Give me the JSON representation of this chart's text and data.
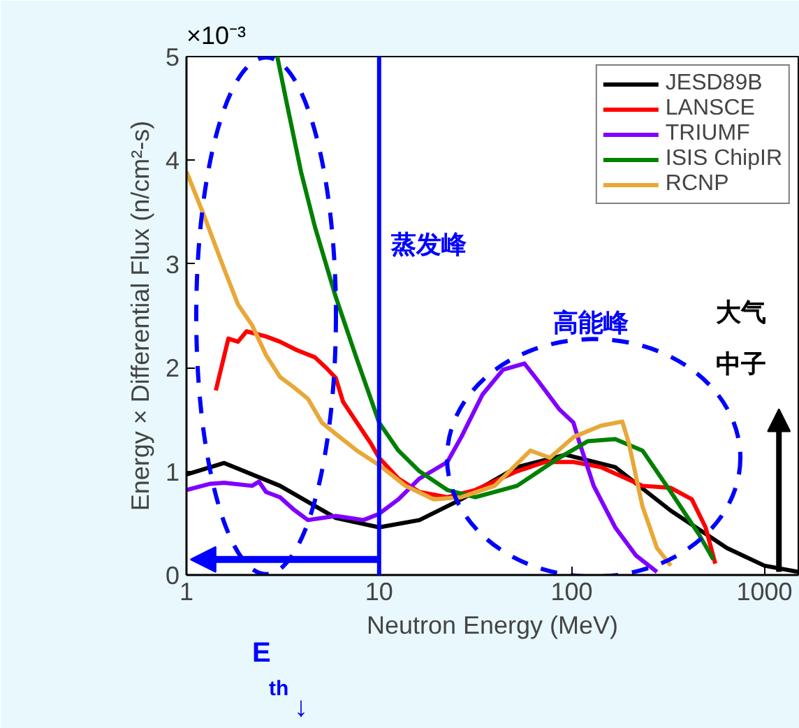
{
  "chart_data": {
    "type": "line",
    "xlabel": "Neutron Energy (MeV)",
    "ylabel": "Energy × Differential Flux (n/cm²-s)",
    "log": "x",
    "xlim": [
      1,
      1500
    ],
    "xticks": [
      1,
      10,
      100,
      1000
    ],
    "ylim": [
      0,
      5
    ],
    "yticks": [
      0,
      1,
      2,
      3,
      4,
      5
    ],
    "grid": false,
    "legend": "top right",
    "line_style": "solid",
    "marker": "none",
    "series": [
      {
        "name": "JESD89B",
        "color": "#000000",
        "x": [
          1,
          1.57,
          3.06,
          5.96,
          10,
          16.2,
          26.7,
          52,
          93,
          168,
          327,
          640,
          1000,
          1500
        ],
        "values": [
          0.97,
          1.08,
          0.86,
          0.55,
          0.46,
          0.53,
          0.73,
          1.04,
          1.16,
          1.04,
          0.62,
          0.26,
          0.09,
          0.03
        ]
      },
      {
        "name": "LANSCE",
        "color": "#ff0000",
        "x": [
          1.42,
          1.65,
          1.85,
          2.05,
          2.59,
          3.06,
          3.73,
          4.64,
          5.3,
          5.96,
          6.5,
          7.67,
          9.05,
          10,
          12.6,
          16.2,
          22.6,
          31.6,
          52,
          73,
          102,
          142,
          233,
          327,
          420,
          495,
          556
        ],
        "values": [
          1.78,
          2.28,
          2.25,
          2.35,
          2.3,
          2.25,
          2.17,
          2.1,
          2.0,
          1.9,
          1.67,
          1.47,
          1.27,
          1.13,
          0.93,
          0.8,
          0.75,
          0.82,
          1.0,
          1.09,
          1.09,
          1.04,
          0.86,
          0.84,
          0.73,
          0.46,
          0.11
        ]
      },
      {
        "name": "TRIUMF",
        "color": "#8000ff",
        "x": [
          1,
          1.33,
          1.57,
          2.19,
          2.38,
          2.59,
          3.06,
          3.61,
          4.27,
          5.96,
          8.3,
          10,
          12.6,
          16.2,
          22.6,
          26.7,
          34.4,
          44,
          56.8,
          67,
          86,
          102,
          110,
          130,
          168,
          215,
          277
        ],
        "values": [
          0.82,
          0.88,
          0.89,
          0.86,
          0.9,
          0.8,
          0.75,
          0.63,
          0.53,
          0.57,
          0.53,
          0.59,
          0.73,
          0.93,
          1.09,
          1.33,
          1.74,
          1.98,
          2.04,
          1.87,
          1.6,
          1.47,
          1.27,
          0.86,
          0.46,
          0.19,
          0.03
        ]
      },
      {
        "name": "ISIS ChipIR",
        "color": "#008000",
        "x": [
          2.96,
          3.3,
          3.93,
          4.64,
          5.96,
          7.67,
          10,
          12.6,
          16.2,
          22.6,
          31.6,
          52,
          86,
          121,
          168,
          233,
          327,
          458,
          543
        ],
        "values": [
          5.0,
          4.57,
          3.89,
          3.36,
          2.68,
          2.08,
          1.47,
          1.2,
          1.0,
          0.82,
          0.75,
          0.86,
          1.13,
          1.29,
          1.31,
          1.2,
          0.8,
          0.39,
          0.15
        ]
      },
      {
        "name": "RCNP",
        "color": "#e8a838",
        "x": [
          1,
          1.22,
          1.57,
          1.85,
          2.19,
          2.59,
          3.06,
          3.61,
          4.27,
          5.04,
          5.96,
          7.67,
          10,
          13.7,
          19.2,
          26.7,
          39.8,
          61,
          77,
          102,
          142,
          183,
          198,
          233,
          277,
          327
        ],
        "values": [
          3.89,
          3.49,
          2.95,
          2.61,
          2.41,
          2.12,
          1.91,
          1.81,
          1.7,
          1.47,
          1.36,
          1.2,
          1.06,
          0.86,
          0.73,
          0.75,
          0.86,
          1.2,
          1.13,
          1.33,
          1.44,
          1.48,
          1.27,
          0.66,
          0.26,
          0.09
        ]
      }
    ],
    "ref_lines": [
      {
        "axis": "x",
        "value": 10,
        "color": "#0000ff",
        "line_style": "solid"
      }
    ],
    "annotations": [
      "×10⁻³",
      "蒸发峰",
      "高能峰",
      "E$_{th}$↓",
      "大气",
      "中子"
    ]
  }
}
